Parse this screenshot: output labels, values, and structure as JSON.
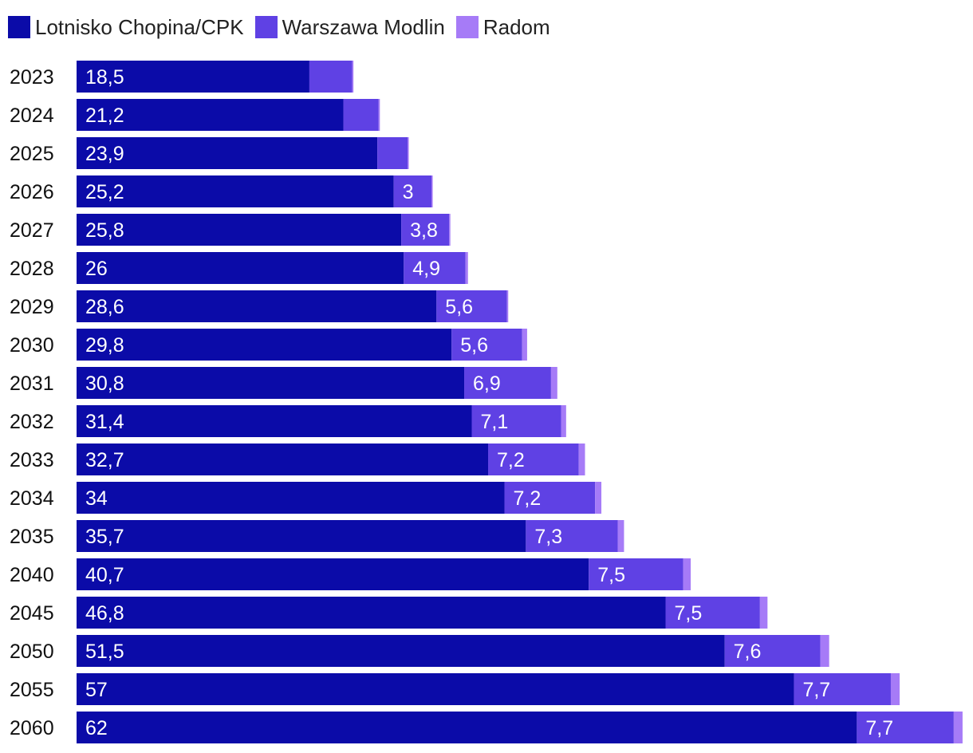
{
  "colors": {
    "chopin": "#0B0BA8",
    "modlin": "#5F41E4",
    "radom": "#A67BF7"
  },
  "chart_data": {
    "type": "bar",
    "orientation": "horizontal",
    "stacked": true,
    "title": "",
    "xlabel": "",
    "ylabel": "",
    "legend_position": "top-left",
    "categories": [
      "2023",
      "2024",
      "2025",
      "2026",
      "2027",
      "2028",
      "2029",
      "2030",
      "2031",
      "2032",
      "2033",
      "2034",
      "2035",
      "2040",
      "2045",
      "2050",
      "2055",
      "2060"
    ],
    "series": [
      {
        "name": "Lotnisko Chopina/CPK",
        "color_key": "chopin",
        "values": [
          18.5,
          21.2,
          23.9,
          25.2,
          25.8,
          26,
          28.6,
          29.8,
          30.8,
          31.4,
          32.7,
          34,
          35.7,
          40.7,
          46.8,
          51.5,
          57,
          62
        ],
        "labels": [
          "18,5",
          "21,2",
          "23,9",
          "25,2",
          "25,8",
          "26",
          "28,6",
          "29,8",
          "30,8",
          "31,4",
          "32,7",
          "34",
          "35,7",
          "40,7",
          "46,8",
          "51,5",
          "57",
          "62"
        ]
      },
      {
        "name": "Warszawa Modlin",
        "color_key": "modlin",
        "values": [
          3.4,
          2.8,
          2.4,
          3,
          3.8,
          4.9,
          5.6,
          5.6,
          6.9,
          7.1,
          7.2,
          7.2,
          7.3,
          7.5,
          7.5,
          7.6,
          7.7,
          7.7
        ],
        "labels": [
          "",
          "",
          "",
          "3",
          "3,8",
          "4,9",
          "5,6",
          "5,6",
          "6,9",
          "7,1",
          "7,2",
          "7,2",
          "7,3",
          "7,5",
          "7,5",
          "7,6",
          "7,7",
          "7,7"
        ]
      },
      {
        "name": "Radom",
        "color_key": "radom",
        "values": [
          0.1,
          0.1,
          0.1,
          0.1,
          0.1,
          0.2,
          0.1,
          0.4,
          0.5,
          0.4,
          0.5,
          0.5,
          0.5,
          0.6,
          0.6,
          0.7,
          0.7,
          0.7
        ],
        "labels": [
          "",
          "",
          "",
          "",
          "",
          "",
          "",
          "",
          "",
          "",
          "",
          "",
          "",
          "",
          "",
          "",
          "",
          ""
        ]
      }
    ]
  }
}
